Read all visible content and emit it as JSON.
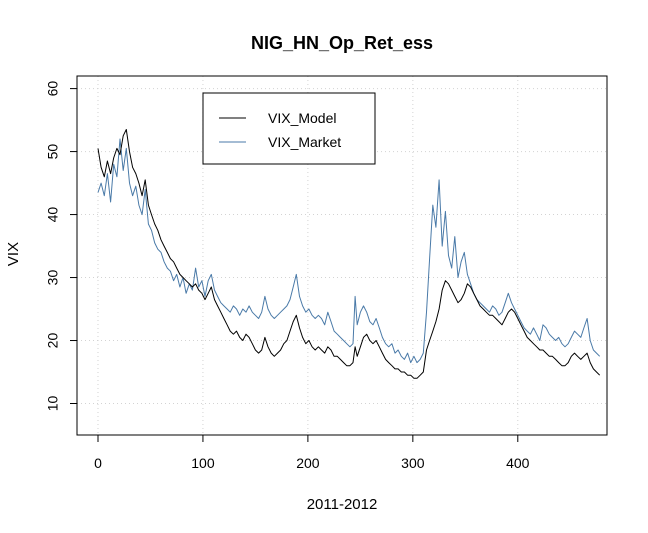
{
  "chart_data": {
    "type": "line",
    "title": "NIG_HN_Op_Ret_ess",
    "xlabel": "2011-2012",
    "ylabel": "VIX",
    "xlim": [
      -20,
      485
    ],
    "ylim": [
      5,
      62
    ],
    "xticks": [
      0,
      100,
      200,
      300,
      400
    ],
    "yticks": [
      10,
      20,
      30,
      40,
      50,
      60
    ],
    "grid": true,
    "legend_position": "top-left",
    "series": [
      {
        "name": "VIX_Model",
        "color": "#000000",
        "points": [
          [
            0,
            50.5
          ],
          [
            3,
            47.5
          ],
          [
            6,
            46.0
          ],
          [
            9,
            48.5
          ],
          [
            12,
            46.5
          ],
          [
            15,
            49.0
          ],
          [
            18,
            50.5
          ],
          [
            21,
            49.5
          ],
          [
            24,
            52.5
          ],
          [
            27,
            53.5
          ],
          [
            30,
            50.0
          ],
          [
            33,
            47.5
          ],
          [
            36,
            46.5
          ],
          [
            39,
            45.0
          ],
          [
            42,
            43.0
          ],
          [
            45,
            45.5
          ],
          [
            48,
            41.5
          ],
          [
            51,
            40.0
          ],
          [
            54,
            38.5
          ],
          [
            57,
            37.5
          ],
          [
            60,
            36.0
          ],
          [
            63,
            35.0
          ],
          [
            66,
            34.0
          ],
          [
            69,
            33.0
          ],
          [
            72,
            32.5
          ],
          [
            75,
            31.5
          ],
          [
            78,
            30.5
          ],
          [
            81,
            30.0
          ],
          [
            84,
            29.5
          ],
          [
            87,
            29.0
          ],
          [
            90,
            28.5
          ],
          [
            93,
            29.0
          ],
          [
            96,
            28.0
          ],
          [
            99,
            27.5
          ],
          [
            102,
            26.5
          ],
          [
            105,
            27.5
          ],
          [
            108,
            28.5
          ],
          [
            111,
            26.5
          ],
          [
            114,
            25.5
          ],
          [
            117,
            24.5
          ],
          [
            120,
            23.5
          ],
          [
            123,
            22.5
          ],
          [
            126,
            21.5
          ],
          [
            129,
            21.0
          ],
          [
            132,
            21.5
          ],
          [
            135,
            20.5
          ],
          [
            138,
            20.0
          ],
          [
            141,
            21.0
          ],
          [
            144,
            20.5
          ],
          [
            147,
            19.5
          ],
          [
            150,
            18.5
          ],
          [
            153,
            18.0
          ],
          [
            156,
            18.5
          ],
          [
            159,
            20.5
          ],
          [
            162,
            19.0
          ],
          [
            165,
            18.0
          ],
          [
            168,
            17.5
          ],
          [
            171,
            18.0
          ],
          [
            174,
            18.5
          ],
          [
            177,
            19.5
          ],
          [
            180,
            20.0
          ],
          [
            183,
            21.5
          ],
          [
            186,
            23.0
          ],
          [
            189,
            24.0
          ],
          [
            192,
            22.0
          ],
          [
            195,
            20.5
          ],
          [
            198,
            19.5
          ],
          [
            201,
            20.0
          ],
          [
            204,
            19.0
          ],
          [
            207,
            18.5
          ],
          [
            210,
            19.0
          ],
          [
            213,
            18.5
          ],
          [
            216,
            18.0
          ],
          [
            219,
            19.0
          ],
          [
            222,
            18.5
          ],
          [
            225,
            17.5
          ],
          [
            228,
            17.5
          ],
          [
            231,
            17.0
          ],
          [
            234,
            16.5
          ],
          [
            237,
            16.0
          ],
          [
            240,
            16.0
          ],
          [
            243,
            16.5
          ],
          [
            245,
            19.0
          ],
          [
            247,
            17.5
          ],
          [
            250,
            19.0
          ],
          [
            253,
            20.5
          ],
          [
            256,
            21.0
          ],
          [
            259,
            20.0
          ],
          [
            262,
            19.5
          ],
          [
            265,
            20.0
          ],
          [
            268,
            19.0
          ],
          [
            271,
            18.0
          ],
          [
            274,
            17.0
          ],
          [
            277,
            16.5
          ],
          [
            280,
            16.0
          ],
          [
            283,
            15.5
          ],
          [
            286,
            15.5
          ],
          [
            289,
            15.0
          ],
          [
            292,
            15.0
          ],
          [
            295,
            14.5
          ],
          [
            298,
            14.5
          ],
          [
            301,
            14.0
          ],
          [
            304,
            14.0
          ],
          [
            307,
            14.5
          ],
          [
            310,
            15.0
          ],
          [
            313,
            18.5
          ],
          [
            316,
            20.0
          ],
          [
            319,
            21.5
          ],
          [
            322,
            23.0
          ],
          [
            325,
            25.0
          ],
          [
            328,
            28.0
          ],
          [
            331,
            29.5
          ],
          [
            334,
            29.0
          ],
          [
            337,
            28.0
          ],
          [
            340,
            27.0
          ],
          [
            343,
            26.0
          ],
          [
            346,
            26.5
          ],
          [
            349,
            27.5
          ],
          [
            352,
            29.0
          ],
          [
            355,
            28.5
          ],
          [
            358,
            27.5
          ],
          [
            361,
            26.5
          ],
          [
            364,
            25.5
          ],
          [
            367,
            25.0
          ],
          [
            370,
            24.5
          ],
          [
            373,
            24.0
          ],
          [
            376,
            24.0
          ],
          [
            379,
            23.5
          ],
          [
            382,
            23.0
          ],
          [
            385,
            22.5
          ],
          [
            388,
            23.5
          ],
          [
            391,
            24.5
          ],
          [
            394,
            25.0
          ],
          [
            397,
            24.5
          ],
          [
            400,
            23.5
          ],
          [
            403,
            22.5
          ],
          [
            406,
            21.5
          ],
          [
            409,
            20.5
          ],
          [
            412,
            20.0
          ],
          [
            415,
            19.5
          ],
          [
            418,
            19.0
          ],
          [
            421,
            18.5
          ],
          [
            424,
            18.5
          ],
          [
            427,
            18.0
          ],
          [
            430,
            17.5
          ],
          [
            433,
            17.5
          ],
          [
            436,
            17.0
          ],
          [
            439,
            16.5
          ],
          [
            442,
            16.0
          ],
          [
            445,
            16.0
          ],
          [
            448,
            16.5
          ],
          [
            451,
            17.5
          ],
          [
            454,
            18.0
          ],
          [
            457,
            17.5
          ],
          [
            460,
            17.0
          ],
          [
            463,
            17.5
          ],
          [
            466,
            18.0
          ],
          [
            469,
            16.5
          ],
          [
            472,
            15.5
          ],
          [
            475,
            15.0
          ],
          [
            478,
            14.5
          ]
        ]
      },
      {
        "name": "VIX_Market",
        "color": "#4a7aa8",
        "points": [
          [
            0,
            43.5
          ],
          [
            3,
            45.0
          ],
          [
            6,
            43.0
          ],
          [
            9,
            46.5
          ],
          [
            12,
            42.0
          ],
          [
            15,
            48.0
          ],
          [
            18,
            46.0
          ],
          [
            21,
            52.0
          ],
          [
            24,
            47.0
          ],
          [
            27,
            50.5
          ],
          [
            30,
            45.0
          ],
          [
            33,
            43.0
          ],
          [
            36,
            44.5
          ],
          [
            39,
            41.5
          ],
          [
            42,
            40.0
          ],
          [
            45,
            44.0
          ],
          [
            48,
            38.5
          ],
          [
            51,
            37.5
          ],
          [
            54,
            35.5
          ],
          [
            57,
            34.5
          ],
          [
            60,
            34.0
          ],
          [
            63,
            32.5
          ],
          [
            66,
            31.5
          ],
          [
            69,
            31.0
          ],
          [
            72,
            29.5
          ],
          [
            75,
            30.5
          ],
          [
            78,
            28.5
          ],
          [
            81,
            30.0
          ],
          [
            84,
            27.5
          ],
          [
            87,
            29.0
          ],
          [
            90,
            28.0
          ],
          [
            93,
            31.5
          ],
          [
            96,
            28.5
          ],
          [
            99,
            29.5
          ],
          [
            102,
            27.0
          ],
          [
            105,
            29.5
          ],
          [
            108,
            30.5
          ],
          [
            111,
            28.0
          ],
          [
            114,
            27.0
          ],
          [
            117,
            26.0
          ],
          [
            120,
            25.5
          ],
          [
            123,
            25.0
          ],
          [
            126,
            24.5
          ],
          [
            129,
            25.5
          ],
          [
            132,
            25.0
          ],
          [
            135,
            24.0
          ],
          [
            138,
            25.0
          ],
          [
            141,
            24.5
          ],
          [
            144,
            25.5
          ],
          [
            147,
            24.5
          ],
          [
            150,
            24.0
          ],
          [
            153,
            23.5
          ],
          [
            156,
            24.5
          ],
          [
            159,
            27.0
          ],
          [
            162,
            25.0
          ],
          [
            165,
            24.0
          ],
          [
            168,
            23.5
          ],
          [
            171,
            24.0
          ],
          [
            174,
            24.5
          ],
          [
            177,
            25.0
          ],
          [
            180,
            25.5
          ],
          [
            183,
            26.5
          ],
          [
            186,
            28.5
          ],
          [
            189,
            30.5
          ],
          [
            192,
            27.0
          ],
          [
            195,
            25.5
          ],
          [
            198,
            24.5
          ],
          [
            201,
            25.0
          ],
          [
            204,
            24.0
          ],
          [
            207,
            23.5
          ],
          [
            210,
            24.0
          ],
          [
            213,
            23.5
          ],
          [
            216,
            22.5
          ],
          [
            219,
            24.5
          ],
          [
            222,
            23.0
          ],
          [
            225,
            21.5
          ],
          [
            228,
            21.0
          ],
          [
            231,
            20.5
          ],
          [
            234,
            20.0
          ],
          [
            237,
            19.5
          ],
          [
            240,
            19.0
          ],
          [
            243,
            19.5
          ],
          [
            245,
            27.0
          ],
          [
            247,
            22.5
          ],
          [
            250,
            24.5
          ],
          [
            253,
            25.5
          ],
          [
            256,
            24.5
          ],
          [
            259,
            23.0
          ],
          [
            262,
            22.5
          ],
          [
            265,
            23.5
          ],
          [
            268,
            22.0
          ],
          [
            271,
            20.5
          ],
          [
            274,
            19.5
          ],
          [
            277,
            19.0
          ],
          [
            280,
            19.5
          ],
          [
            283,
            18.0
          ],
          [
            286,
            18.5
          ],
          [
            289,
            17.5
          ],
          [
            292,
            17.0
          ],
          [
            295,
            18.0
          ],
          [
            298,
            16.5
          ],
          [
            301,
            17.5
          ],
          [
            304,
            16.5
          ],
          [
            307,
            17.0
          ],
          [
            310,
            18.0
          ],
          [
            313,
            24.5
          ],
          [
            316,
            33.0
          ],
          [
            319,
            41.5
          ],
          [
            322,
            38.0
          ],
          [
            325,
            45.5
          ],
          [
            328,
            35.0
          ],
          [
            331,
            40.5
          ],
          [
            334,
            33.5
          ],
          [
            337,
            31.5
          ],
          [
            340,
            36.5
          ],
          [
            343,
            30.0
          ],
          [
            346,
            32.5
          ],
          [
            349,
            34.0
          ],
          [
            352,
            30.5
          ],
          [
            355,
            29.0
          ],
          [
            358,
            27.5
          ],
          [
            361,
            26.5
          ],
          [
            364,
            26.0
          ],
          [
            367,
            25.5
          ],
          [
            370,
            25.0
          ],
          [
            373,
            24.5
          ],
          [
            376,
            25.5
          ],
          [
            379,
            25.0
          ],
          [
            382,
            24.0
          ],
          [
            385,
            24.5
          ],
          [
            388,
            26.0
          ],
          [
            391,
            27.5
          ],
          [
            394,
            26.0
          ],
          [
            397,
            25.0
          ],
          [
            400,
            24.0
          ],
          [
            403,
            23.0
          ],
          [
            406,
            22.0
          ],
          [
            409,
            21.5
          ],
          [
            412,
            21.0
          ],
          [
            415,
            22.0
          ],
          [
            418,
            21.0
          ],
          [
            421,
            20.0
          ],
          [
            424,
            22.5
          ],
          [
            427,
            22.0
          ],
          [
            430,
            21.0
          ],
          [
            433,
            20.5
          ],
          [
            436,
            20.0
          ],
          [
            439,
            20.5
          ],
          [
            442,
            19.5
          ],
          [
            445,
            19.0
          ],
          [
            448,
            19.5
          ],
          [
            451,
            20.5
          ],
          [
            454,
            21.5
          ],
          [
            457,
            21.0
          ],
          [
            460,
            20.5
          ],
          [
            463,
            22.0
          ],
          [
            466,
            23.5
          ],
          [
            469,
            20.0
          ],
          [
            472,
            18.5
          ],
          [
            475,
            18.0
          ],
          [
            478,
            17.5
          ]
        ]
      }
    ]
  }
}
